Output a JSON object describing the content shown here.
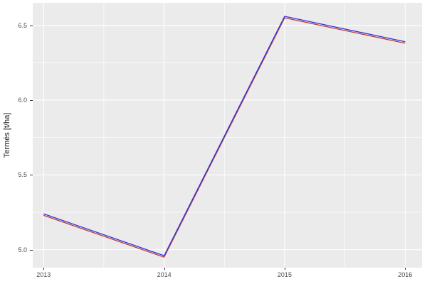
{
  "chart_data": {
    "type": "line",
    "x": [
      2013,
      2014,
      2015,
      2016
    ],
    "series": [
      {
        "name": "red-series",
        "color": "#B33C3C",
        "values": [
          5.23,
          4.95,
          6.55,
          6.38
        ]
      },
      {
        "name": "blue-series",
        "color": "#3434DF",
        "values": [
          5.24,
          4.96,
          6.56,
          6.39
        ]
      }
    ],
    "title": "",
    "xlabel": "",
    "ylabel": "Termés [t/ha]",
    "x_tick_labels": [
      "2013",
      "2014",
      "2015",
      "2016"
    ],
    "x_tick_values": [
      2013,
      2014,
      2015,
      2016
    ],
    "y_tick_labels": [
      "5.0",
      "5.5",
      "6.0",
      "6.5"
    ],
    "y_tick_values": [
      5.0,
      5.5,
      6.0,
      6.5
    ],
    "x_minor_gridlines": [
      2013.5,
      2014.5,
      2015.5
    ],
    "y_minor_gridlines": [
      5.25,
      5.75,
      6.25
    ],
    "xlim": [
      2012.91,
      2016.14
    ],
    "ylim": [
      4.88,
      6.65
    ],
    "grid": "major-and-minor",
    "legend_position": "none",
    "theme": {
      "panel_background": "#EBEBEB",
      "gridline_color": "#FFFFFF",
      "tick_text_color": "#4D4D4D",
      "axis_title_color": "#1A1A1A",
      "tick_mark_color": "#333333",
      "figure_background": "#FFFFFF",
      "line_width": 1.3
    }
  }
}
